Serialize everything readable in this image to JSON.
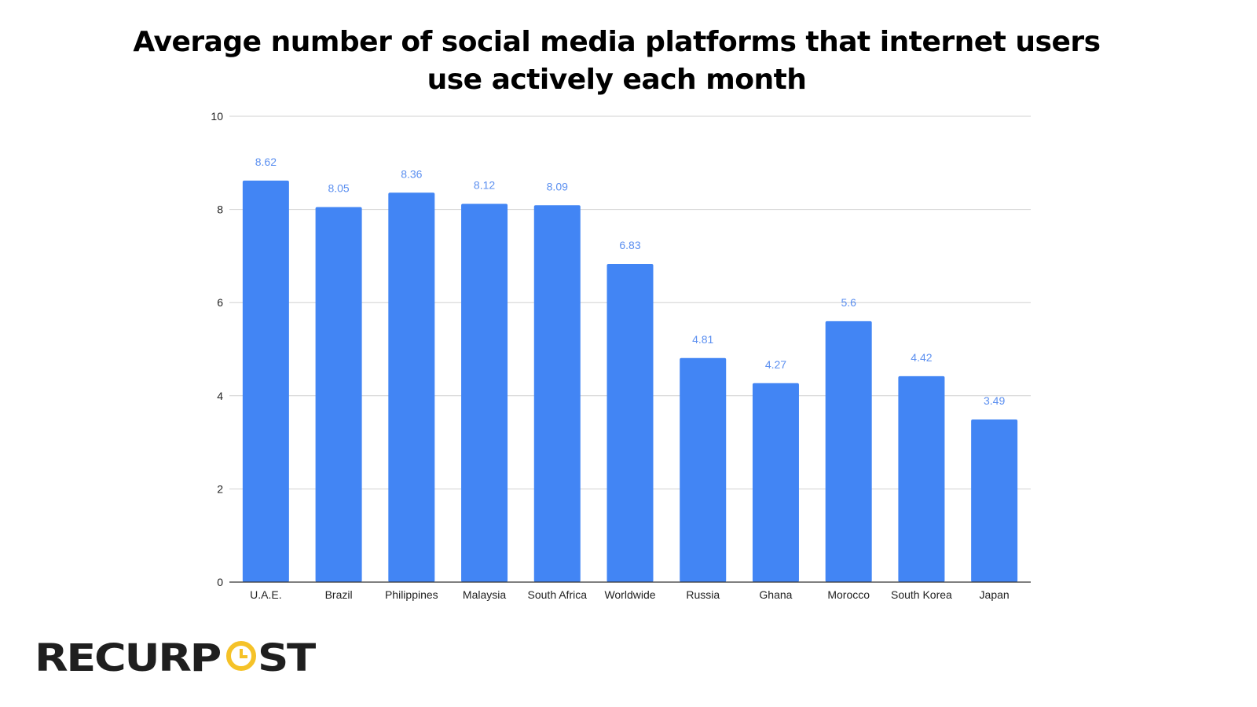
{
  "chart_data": {
    "type": "bar",
    "title_line1": "Average number of social media platforms that internet users",
    "title_line2": "use actively each month",
    "categories": [
      "U.A.E.",
      "Brazil",
      "Philippines",
      "Malaysia",
      "South Africa",
      "Worldwide",
      "Russia",
      "Ghana",
      "Morocco",
      "South Korea",
      "Japan"
    ],
    "values": [
      8.62,
      8.05,
      8.36,
      8.12,
      8.09,
      6.83,
      4.81,
      4.27,
      5.6,
      4.42,
      3.49
    ],
    "value_labels": [
      "8.62",
      "8.05",
      "8.36",
      "8.12",
      "8.09",
      "6.83",
      "4.81",
      "4.27",
      "5.6",
      "4.42",
      "3.49"
    ],
    "xlabel": "",
    "ylabel": "",
    "ylim": [
      0,
      10
    ],
    "yticks": [
      0,
      2,
      4,
      6,
      8,
      10
    ],
    "grid": true,
    "bar_color": "#4285f4",
    "label_color": "#5b8ff0"
  },
  "logo": {
    "text": "RECURPOST",
    "accent": "#f5c228"
  }
}
